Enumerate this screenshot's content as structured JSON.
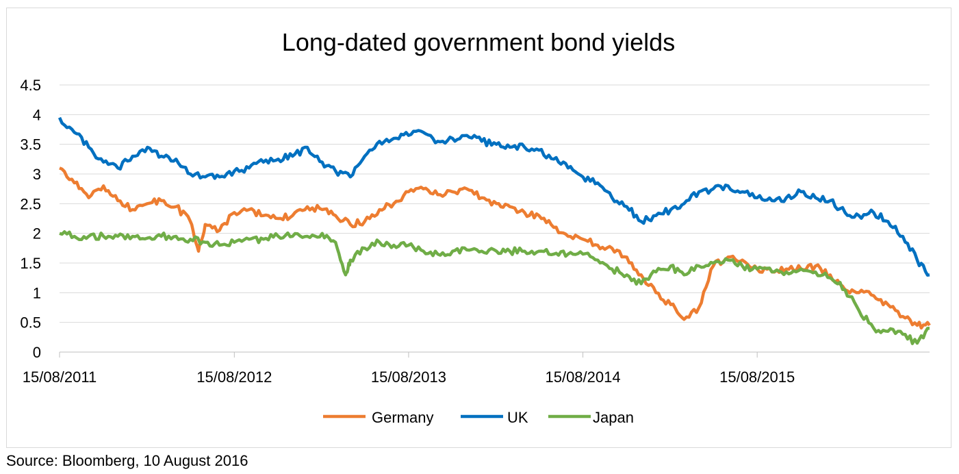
{
  "chart_data": {
    "type": "line",
    "title": "Long-dated government bond yields",
    "xlabel": "",
    "ylabel": "",
    "x_ticks": [
      "15/08/2011",
      "15/08/2012",
      "15/08/2013",
      "15/08/2014",
      "15/08/2015"
    ],
    "y_ticks": [
      "0",
      "0.5",
      "1",
      "1.5",
      "2",
      "2.5",
      "3",
      "3.5",
      "4",
      "4.5"
    ],
    "ylim": [
      0,
      4.5
    ],
    "xlim": [
      "2011-08-15",
      "2016-08-10"
    ],
    "grid": true,
    "legend_position": "bottom",
    "series": [
      {
        "name": "Germany",
        "color": "#ED7D31",
        "x": [
          "2011-08-15",
          "2011-09-15",
          "2011-10-15",
          "2011-11-15",
          "2011-12-15",
          "2012-01-15",
          "2012-02-15",
          "2012-03-15",
          "2012-04-15",
          "2012-05-15",
          "2012-06-01",
          "2012-06-15",
          "2012-07-15",
          "2012-08-15",
          "2012-09-15",
          "2012-10-15",
          "2012-11-15",
          "2012-12-15",
          "2013-01-15",
          "2013-02-15",
          "2013-03-15",
          "2013-04-15",
          "2013-05-15",
          "2013-06-15",
          "2013-07-15",
          "2013-08-15",
          "2013-09-15",
          "2013-10-15",
          "2013-11-15",
          "2013-12-15",
          "2014-01-15",
          "2014-02-15",
          "2014-03-15",
          "2014-04-15",
          "2014-05-15",
          "2014-06-15",
          "2014-07-15",
          "2014-08-15",
          "2014-09-15",
          "2014-10-15",
          "2014-11-15",
          "2014-12-15",
          "2015-01-15",
          "2015-02-15",
          "2015-03-15",
          "2015-04-15",
          "2015-05-15",
          "2015-06-15",
          "2015-07-15",
          "2015-08-15",
          "2015-09-15",
          "2015-10-15",
          "2015-11-15",
          "2015-12-15",
          "2016-01-15",
          "2016-02-15",
          "2016-03-15",
          "2016-04-15",
          "2016-05-15",
          "2016-06-15",
          "2016-07-15",
          "2016-08-10"
        ],
        "values": [
          3.1,
          2.85,
          2.6,
          2.8,
          2.55,
          2.4,
          2.5,
          2.55,
          2.45,
          2.2,
          1.7,
          2.15,
          2.05,
          2.35,
          2.4,
          2.3,
          2.25,
          2.3,
          2.45,
          2.4,
          2.3,
          2.15,
          2.2,
          2.4,
          2.5,
          2.7,
          2.75,
          2.65,
          2.7,
          2.75,
          2.6,
          2.5,
          2.45,
          2.35,
          2.3,
          2.1,
          1.95,
          1.9,
          1.8,
          1.75,
          1.6,
          1.3,
          1.0,
          0.8,
          0.55,
          0.75,
          1.45,
          1.6,
          1.55,
          1.4,
          1.35,
          1.4,
          1.4,
          1.45,
          1.3,
          1.05,
          1.0,
          0.95,
          0.8,
          0.6,
          0.45,
          0.45
        ]
      },
      {
        "name": "UK",
        "color": "#0070C0",
        "x": [
          "2011-08-15",
          "2011-09-15",
          "2011-10-15",
          "2011-11-15",
          "2011-12-15",
          "2012-01-15",
          "2012-02-15",
          "2012-03-15",
          "2012-04-15",
          "2012-05-15",
          "2012-06-15",
          "2012-07-15",
          "2012-08-15",
          "2012-09-15",
          "2012-10-15",
          "2012-11-15",
          "2012-12-15",
          "2013-01-15",
          "2013-02-15",
          "2013-03-15",
          "2013-04-15",
          "2013-05-15",
          "2013-06-15",
          "2013-07-15",
          "2013-08-15",
          "2013-09-15",
          "2013-10-15",
          "2013-11-15",
          "2013-12-15",
          "2014-01-15",
          "2014-02-15",
          "2014-03-15",
          "2014-04-15",
          "2014-05-15",
          "2014-06-15",
          "2014-07-15",
          "2014-08-15",
          "2014-09-15",
          "2014-10-15",
          "2014-11-15",
          "2014-12-15",
          "2015-01-15",
          "2015-02-15",
          "2015-03-15",
          "2015-04-15",
          "2015-05-15",
          "2015-06-15",
          "2015-07-15",
          "2015-08-15",
          "2015-09-15",
          "2015-10-15",
          "2015-11-15",
          "2015-12-15",
          "2016-01-15",
          "2016-02-15",
          "2016-03-15",
          "2016-04-15",
          "2016-05-15",
          "2016-06-15",
          "2016-07-15",
          "2016-08-10"
        ],
        "values": [
          3.95,
          3.7,
          3.45,
          3.2,
          3.1,
          3.3,
          3.45,
          3.3,
          3.25,
          3.0,
          2.95,
          2.95,
          3.05,
          3.1,
          3.2,
          3.25,
          3.3,
          3.45,
          3.2,
          3.05,
          2.95,
          3.3,
          3.55,
          3.6,
          3.65,
          3.7,
          3.55,
          3.6,
          3.65,
          3.55,
          3.5,
          3.45,
          3.45,
          3.4,
          3.25,
          3.1,
          2.95,
          2.85,
          2.6,
          2.45,
          2.2,
          2.3,
          2.4,
          2.5,
          2.7,
          2.75,
          2.8,
          2.7,
          2.6,
          2.55,
          2.6,
          2.7,
          2.6,
          2.55,
          2.35,
          2.3,
          2.35,
          2.2,
          1.95,
          1.55,
          1.3
        ]
      },
      {
        "name": "Japan",
        "color": "#70AD47",
        "x": [
          "2011-08-15",
          "2011-09-15",
          "2011-10-15",
          "2011-11-15",
          "2011-12-15",
          "2012-01-15",
          "2012-02-15",
          "2012-03-15",
          "2012-04-15",
          "2012-05-15",
          "2012-06-15",
          "2012-07-15",
          "2012-08-15",
          "2012-09-15",
          "2012-10-15",
          "2012-11-15",
          "2012-12-15",
          "2013-01-15",
          "2013-02-15",
          "2013-03-15",
          "2013-04-05",
          "2013-04-15",
          "2013-05-15",
          "2013-06-15",
          "2013-07-15",
          "2013-08-15",
          "2013-09-15",
          "2013-10-15",
          "2013-11-15",
          "2013-12-15",
          "2014-01-15",
          "2014-02-15",
          "2014-03-15",
          "2014-04-15",
          "2014-05-15",
          "2014-06-15",
          "2014-07-15",
          "2014-08-15",
          "2014-09-15",
          "2014-10-15",
          "2014-11-15",
          "2014-12-15",
          "2015-01-15",
          "2015-02-15",
          "2015-03-15",
          "2015-04-15",
          "2015-05-15",
          "2015-06-15",
          "2015-07-15",
          "2015-08-15",
          "2015-09-15",
          "2015-10-15",
          "2015-11-15",
          "2015-12-15",
          "2016-01-15",
          "2016-02-15",
          "2016-03-15",
          "2016-04-15",
          "2016-05-15",
          "2016-06-15",
          "2016-07-15",
          "2016-08-10"
        ],
        "values": [
          2.0,
          1.95,
          1.95,
          1.95,
          1.95,
          1.95,
          1.92,
          1.95,
          1.95,
          1.9,
          1.85,
          1.8,
          1.85,
          1.9,
          1.9,
          1.95,
          1.95,
          1.95,
          2.0,
          1.85,
          1.3,
          1.55,
          1.75,
          1.85,
          1.8,
          1.8,
          1.7,
          1.65,
          1.7,
          1.72,
          1.7,
          1.7,
          1.7,
          1.7,
          1.7,
          1.65,
          1.65,
          1.65,
          1.55,
          1.4,
          1.3,
          1.15,
          1.35,
          1.45,
          1.3,
          1.45,
          1.5,
          1.55,
          1.45,
          1.4,
          1.35,
          1.35,
          1.4,
          1.35,
          1.25,
          1.05,
          0.7,
          0.4,
          0.35,
          0.3,
          0.15,
          0.4
        ]
      }
    ]
  },
  "source": "Source: Bloomberg, 10 August 2016"
}
